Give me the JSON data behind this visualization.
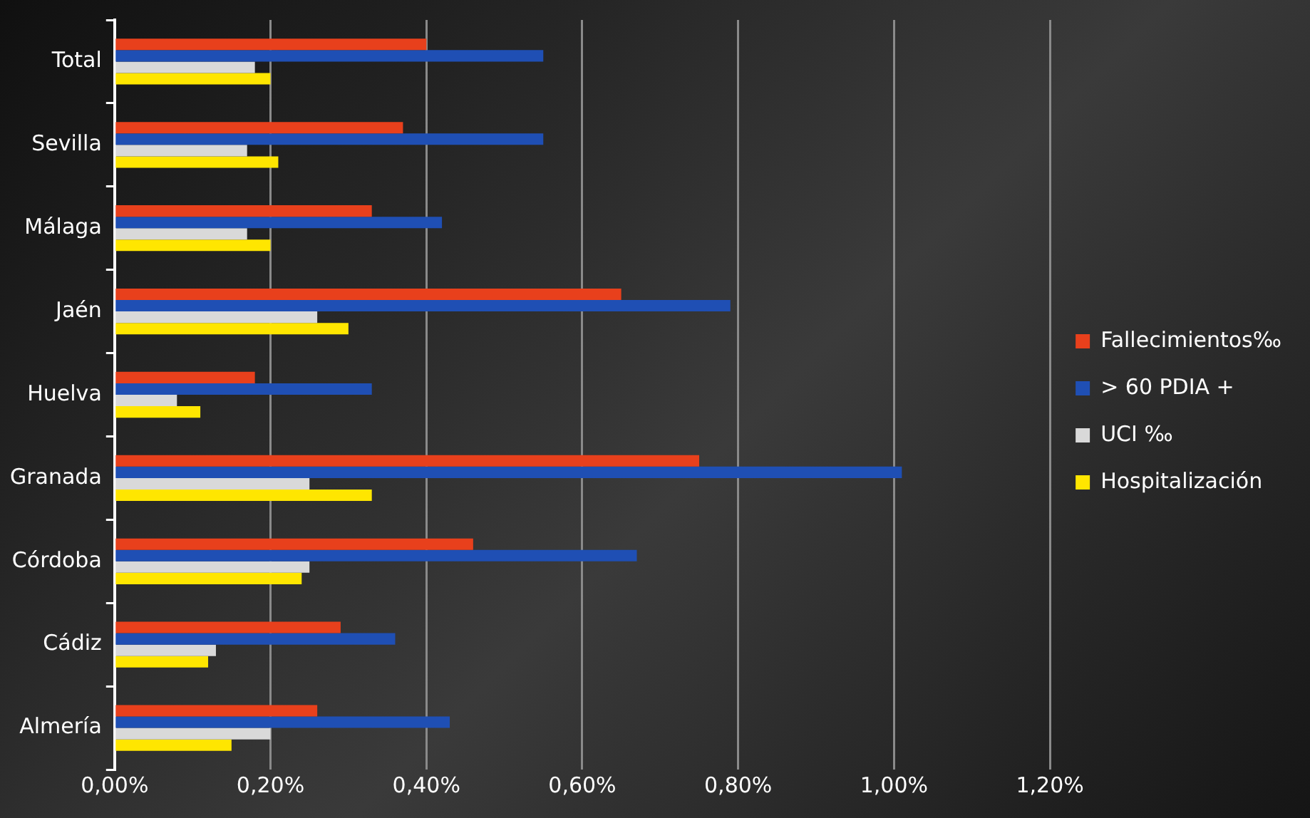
{
  "chart_data": {
    "type": "bar",
    "orientation": "horizontal",
    "categories": [
      "Total",
      "Sevilla",
      "Málaga",
      "Jaén",
      "Huelva",
      "Granada",
      "Córdoba",
      "Cádiz",
      "Almería"
    ],
    "series": [
      {
        "name": "Fallecimientos‰",
        "color": "#e8401c",
        "values": [
          0.4,
          0.37,
          0.33,
          0.65,
          0.18,
          0.75,
          0.46,
          0.29,
          0.26
        ]
      },
      {
        "name": "> 60 PDIA +",
        "color": "#1f4fb4",
        "values": [
          0.55,
          0.55,
          0.42,
          0.79,
          0.33,
          1.01,
          0.67,
          0.36,
          0.43
        ]
      },
      {
        "name": "UCI ‰",
        "color": "#d9d9d9",
        "values": [
          0.18,
          0.17,
          0.17,
          0.26,
          0.08,
          0.25,
          0.25,
          0.13,
          0.2
        ]
      },
      {
        "name": "Hospitalización",
        "color": "#ffe600",
        "values": [
          0.2,
          0.21,
          0.2,
          0.3,
          0.11,
          0.33,
          0.24,
          0.12,
          0.15
        ]
      }
    ],
    "xlim": [
      0,
      1.2
    ],
    "xticks": [
      {
        "value": 0,
        "label": "0,00%"
      },
      {
        "value": 0.2,
        "label": "0,20%"
      },
      {
        "value": 0.4,
        "label": "0,40%"
      },
      {
        "value": 0.6,
        "label": "0,60%"
      },
      {
        "value": 0.8,
        "label": "0,80%"
      },
      {
        "value": 1.0,
        "label": "1,00%"
      },
      {
        "value": 1.2,
        "label": "1,20%"
      }
    ],
    "grid": "x",
    "legend": "right"
  }
}
